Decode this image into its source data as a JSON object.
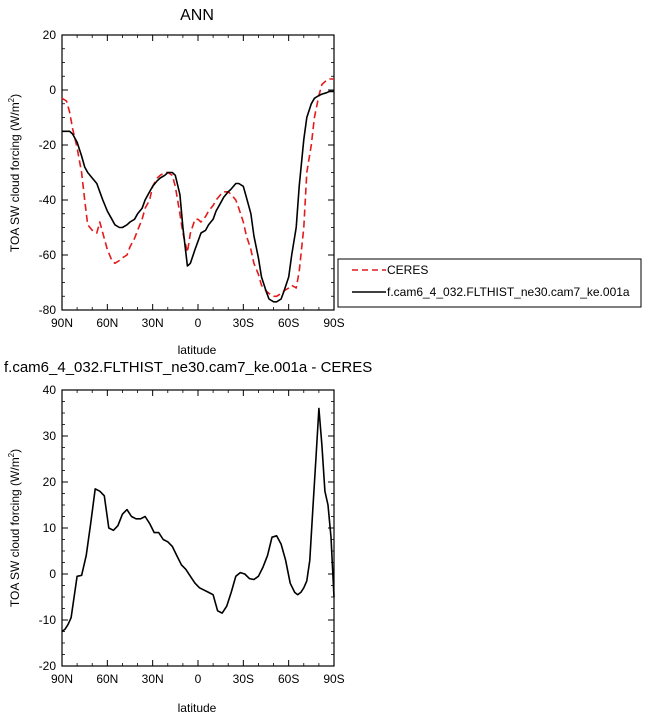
{
  "chart_data": [
    {
      "type": "line",
      "title": "ANN",
      "xlabel": "latitude",
      "ylabel": "TOA SW cloud forcing (W/m",
      "ylabel_sup": "2",
      "ylabel_close": ")",
      "xlim": [
        90,
        -90
      ],
      "ylim": [
        -80,
        20
      ],
      "x_ticks": [
        90,
        60,
        30,
        0,
        -30,
        -60,
        -90
      ],
      "x_tick_labels": [
        "90N",
        "60N",
        "30N",
        "0",
        "30S",
        "60S",
        "90S"
      ],
      "y_ticks": [
        20,
        0,
        -20,
        -40,
        -60,
        -80
      ],
      "y_tick_labels": [
        "20",
        "0",
        "-20",
        "-40",
        "-60",
        "-80"
      ],
      "legend_position": "right",
      "series": [
        {
          "name": "CERES",
          "color": "#e41a1c",
          "dash": "dashed",
          "x": [
            90,
            87,
            85,
            83,
            80,
            77,
            75,
            73,
            70,
            67,
            65,
            63,
            60,
            57,
            55,
            52,
            50,
            47,
            45,
            42,
            40,
            37,
            35,
            32,
            30,
            27,
            25,
            22,
            20,
            17,
            15,
            12,
            10,
            7,
            5,
            2,
            0,
            -2,
            -5,
            -7,
            -10,
            -12,
            -15,
            -17,
            -20,
            -22,
            -25,
            -27,
            -30,
            -32,
            -35,
            -37,
            -40,
            -42,
            -45,
            -47,
            -50,
            -52,
            -55,
            -57,
            -60,
            -62,
            -65,
            -67,
            -70,
            -72,
            -75,
            -77,
            -80,
            -82,
            -85,
            -87,
            -90
          ],
          "y": [
            -3,
            -4,
            -8,
            -14,
            -21,
            -30,
            -40,
            -49,
            -51,
            -52,
            -48,
            -52,
            -58,
            -62,
            -63,
            -62,
            -61,
            -60,
            -57,
            -54,
            -51,
            -47,
            -43,
            -40,
            -35,
            -32,
            -31,
            -30,
            -30,
            -31,
            -35,
            -45,
            -52,
            -59,
            -52,
            -47,
            -47,
            -48,
            -46,
            -44,
            -42,
            -40,
            -38,
            -37,
            -37,
            -38,
            -40,
            -43,
            -48,
            -53,
            -58,
            -63,
            -67,
            -71,
            -73,
            -74,
            -75,
            -75,
            -74,
            -73,
            -72,
            -71,
            -72,
            -66,
            -50,
            -30,
            -20,
            -10,
            -2,
            2,
            3.5,
            4,
            4
          ]
        },
        {
          "name": "f.cam6_4_032.FLTHIST_ne30.cam7_ke.001a",
          "color": "#000000",
          "dash": "solid",
          "x": [
            90,
            87,
            85,
            83,
            80,
            77,
            75,
            73,
            70,
            67,
            65,
            63,
            60,
            57,
            55,
            52,
            50,
            47,
            45,
            42,
            40,
            37,
            35,
            32,
            30,
            27,
            25,
            22,
            20,
            17,
            15,
            12,
            10,
            7,
            5,
            2,
            0,
            -2,
            -5,
            -7,
            -10,
            -12,
            -15,
            -17,
            -20,
            -22,
            -25,
            -27,
            -30,
            -32,
            -35,
            -37,
            -40,
            -42,
            -45,
            -47,
            -50,
            -52,
            -55,
            -57,
            -60,
            -62,
            -65,
            -67,
            -70,
            -72,
            -75,
            -77,
            -80,
            -82,
            -85,
            -87,
            -90
          ],
          "y": [
            -15,
            -15,
            -15,
            -16,
            -19,
            -24,
            -28,
            -30,
            -32,
            -34,
            -37,
            -40,
            -44,
            -47,
            -49,
            -50,
            -50,
            -49,
            -48,
            -47,
            -45,
            -43,
            -40,
            -37,
            -35,
            -33,
            -32,
            -31,
            -30,
            -30,
            -31,
            -38,
            -50,
            -64,
            -63,
            -58,
            -55,
            -52,
            -51,
            -49,
            -47,
            -44,
            -41,
            -39,
            -37,
            -36,
            -34,
            -34,
            -35,
            -39,
            -45,
            -53,
            -61,
            -68,
            -73,
            -76,
            -77,
            -77,
            -76,
            -73,
            -68,
            -60,
            -50,
            -35,
            -18,
            -10,
            -5,
            -3,
            -2,
            -1.5,
            -1,
            -0.5,
            -0.5
          ]
        }
      ]
    },
    {
      "type": "line",
      "title": "f.cam6_4_032.FLTHIST_ne30.cam7_ke.001a - CERES",
      "xlabel": "latitude",
      "ylabel": "TOA SW cloud forcing (W/m",
      "ylabel_sup": "2",
      "ylabel_close": ")",
      "xlim": [
        90,
        -90
      ],
      "ylim": [
        -20,
        40
      ],
      "x_ticks": [
        90,
        60,
        30,
        0,
        -30,
        -60,
        -90
      ],
      "x_tick_labels": [
        "90N",
        "60N",
        "30N",
        "0",
        "30S",
        "60S",
        "90S"
      ],
      "y_ticks": [
        40,
        30,
        20,
        10,
        0,
        -10,
        -20
      ],
      "y_tick_labels": [
        "40",
        "30",
        "20",
        "10",
        "0",
        "-10",
        "-20"
      ],
      "series": [
        {
          "color": "#000000",
          "dash": "solid",
          "x": [
            90,
            88,
            86,
            84,
            82,
            80,
            77,
            74,
            71,
            68,
            65,
            62,
            59,
            56,
            53,
            50,
            47,
            44,
            41,
            38,
            35,
            32,
            29,
            26,
            23,
            20,
            17,
            14,
            11,
            8,
            5,
            2,
            -1,
            -4,
            -7,
            -10,
            -13,
            -16,
            -19,
            -22,
            -25,
            -28,
            -31,
            -34,
            -37,
            -40,
            -43,
            -46,
            -49,
            -52,
            -55,
            -58,
            -61,
            -64,
            -66,
            -68,
            -70,
            -72,
            -74,
            -76,
            -78,
            -80,
            -82,
            -84,
            -86,
            -88,
            -90
          ],
          "y": [
            -12.5,
            -12,
            -11,
            -9.5,
            -5,
            -0.5,
            -0.3,
            4,
            11,
            18.5,
            18,
            17,
            10,
            9.5,
            10.5,
            13,
            14,
            12.5,
            12,
            12,
            12.5,
            11,
            9,
            9,
            7.5,
            7,
            6,
            4,
            2,
            1,
            -0.5,
            -2,
            -3,
            -3.5,
            -4,
            -4.5,
            -8,
            -8.5,
            -7,
            -4,
            -0.5,
            0.3,
            0,
            -1,
            -1.2,
            -0.5,
            1.5,
            4,
            8,
            8.3,
            6.5,
            3,
            -2,
            -4,
            -4.5,
            -4,
            -3,
            -1.5,
            3,
            14,
            25,
            36,
            28,
            18,
            15,
            8,
            -5
          ]
        }
      ]
    }
  ]
}
